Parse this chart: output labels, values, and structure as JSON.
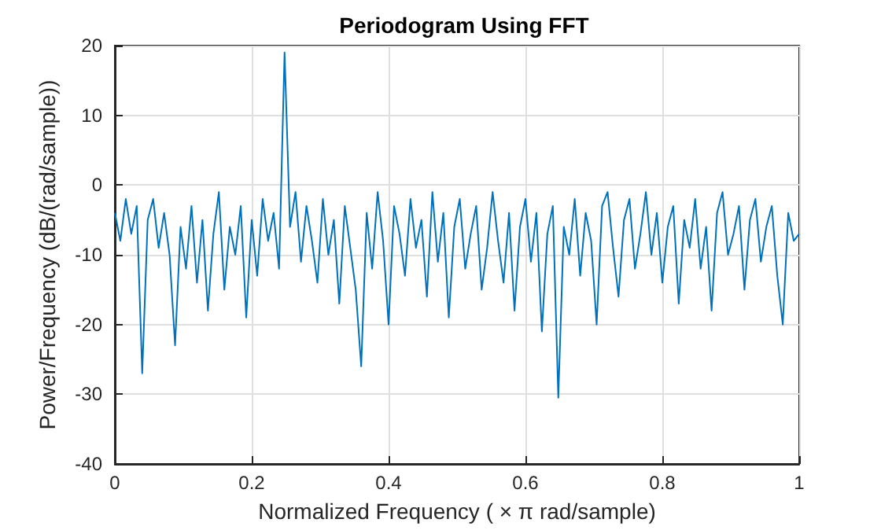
{
  "chart_data": {
    "type": "line",
    "title": "Periodogram Using FFT",
    "xlabel": "Normalized Frequency ( × π rad/sample)",
    "ylabel": "Power/Frequency (dB/(rad/sample))",
    "xlim": [
      0,
      1
    ],
    "xticks": [
      0,
      0.2,
      0.4,
      0.6,
      0.8,
      1
    ],
    "ylim": [
      -40,
      20
    ],
    "yticks": [
      -40,
      -30,
      -20,
      -10,
      0,
      10,
      20
    ],
    "grid": true,
    "marker": "none",
    "line_style": "solid",
    "series": [
      {
        "color": "#0072bd",
        "x": [
          0,
          0.008,
          0.016,
          0.024,
          0.032,
          0.04,
          0.048,
          0.056,
          0.064,
          0.072,
          0.08,
          0.088,
          0.096,
          0.104,
          0.112,
          0.12,
          0.128,
          0.136,
          0.144,
          0.152,
          0.16,
          0.168,
          0.176,
          0.184,
          0.192,
          0.2,
          0.208,
          0.216,
          0.224,
          0.232,
          0.24,
          0.248,
          0.256,
          0.264,
          0.272,
          0.28,
          0.288,
          0.296,
          0.304,
          0.312,
          0.32,
          0.328,
          0.336,
          0.344,
          0.352,
          0.36,
          0.368,
          0.376,
          0.384,
          0.392,
          0.4,
          0.408,
          0.416,
          0.424,
          0.432,
          0.44,
          0.448,
          0.456,
          0.464,
          0.472,
          0.48,
          0.488,
          0.496,
          0.504,
          0.512,
          0.52,
          0.528,
          0.536,
          0.544,
          0.552,
          0.56,
          0.568,
          0.576,
          0.584,
          0.592,
          0.6,
          0.608,
          0.616,
          0.624,
          0.632,
          0.64,
          0.648,
          0.656,
          0.664,
          0.672,
          0.68,
          0.688,
          0.696,
          0.704,
          0.712,
          0.72,
          0.728,
          0.736,
          0.744,
          0.752,
          0.76,
          0.768,
          0.776,
          0.784,
          0.792,
          0.8,
          0.808,
          0.816,
          0.824,
          0.832,
          0.84,
          0.848,
          0.856,
          0.864,
          0.872,
          0.88,
          0.888,
          0.896,
          0.904,
          0.912,
          0.92,
          0.928,
          0.936,
          0.944,
          0.952,
          0.96,
          0.968,
          0.976,
          0.984,
          0.992,
          1
        ],
        "values": [
          -4,
          -8,
          -2,
          -7,
          -3,
          -27,
          -5,
          -2,
          -9,
          -4,
          -10,
          -23,
          -6,
          -12,
          -3,
          -14,
          -5,
          -18,
          -7,
          -1,
          -15,
          -6,
          -10,
          -3,
          -19,
          -5,
          -13,
          -2,
          -8,
          -4,
          -12,
          19,
          -6,
          -1,
          -11,
          -3,
          -8,
          -14,
          -2,
          -10,
          -5,
          -17,
          -3,
          -9,
          -15,
          -26,
          -4,
          -12,
          -1,
          -8,
          -20,
          -3,
          -7,
          -13,
          -2,
          -9,
          -5,
          -16,
          -1,
          -11,
          -4,
          -19,
          -6,
          -2,
          -12,
          -7,
          -3,
          -15,
          -9,
          -1,
          -8,
          -14,
          -4,
          -18,
          -6,
          -2,
          -11,
          -4,
          -21,
          -7,
          -3,
          -30.5,
          -6,
          -10,
          -2,
          -13,
          -4,
          -8,
          -20,
          -3,
          -1,
          -9,
          -16,
          -5,
          -2,
          -12,
          -7,
          -1,
          -10,
          -4,
          -14,
          -6,
          -3,
          -17,
          -5,
          -9,
          -2,
          -12,
          -6,
          -18,
          -4,
          -1,
          -10,
          -7,
          -3,
          -15,
          -5,
          -2,
          -11,
          -6,
          -3,
          -13,
          -20,
          -4,
          -8,
          -7
        ]
      }
    ]
  }
}
